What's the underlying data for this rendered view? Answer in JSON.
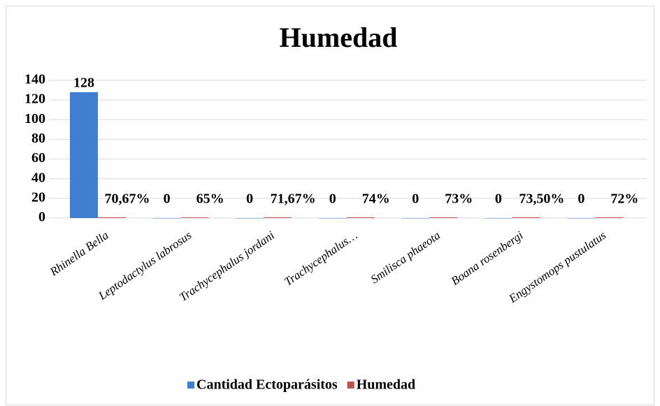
{
  "chart_data": {
    "type": "bar",
    "title": "Humedad",
    "categories": [
      "Rhinella Bella",
      "Leptodactylus labrosus",
      "Trachycephalus jordani",
      "Trachycephalus…",
      "Smilisca phaeota",
      "Boana rosenbergi",
      "Engystomops pustulatus"
    ],
    "series": [
      {
        "name": "Cantidad Ectoparásitos",
        "color": "#3f7fcf",
        "values": [
          128,
          0,
          0,
          0,
          0,
          0,
          0
        ]
      },
      {
        "name": "Humedad",
        "color": "#c0504d",
        "values": [
          0.7067,
          0.65,
          0.7167,
          0.74,
          0.73,
          0.735,
          0.72
        ],
        "value_labels": [
          "70,67%",
          "65%",
          "71,67%",
          "74%",
          "73%",
          "73,50%",
          "72%"
        ]
      }
    ],
    "ylim": [
      0,
      140
    ],
    "yticks": [
      0,
      20,
      40,
      60,
      80,
      100,
      120,
      140
    ],
    "grid": true,
    "legend": "bottom"
  }
}
